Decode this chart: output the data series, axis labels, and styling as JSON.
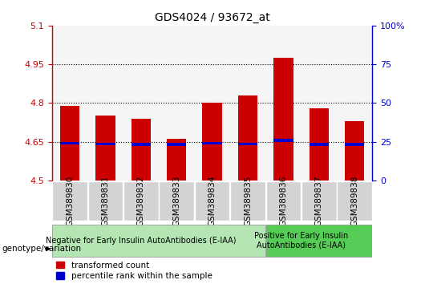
{
  "title": "GDS4024 / 93672_at",
  "samples": [
    "GSM389830",
    "GSM389831",
    "GSM389832",
    "GSM389833",
    "GSM389834",
    "GSM389835",
    "GSM389836",
    "GSM389837",
    "GSM389838"
  ],
  "red_values": [
    4.79,
    4.75,
    4.74,
    4.66,
    4.8,
    4.83,
    4.975,
    4.78,
    4.73
  ],
  "blue_values": [
    4.638,
    4.635,
    4.632,
    4.634,
    4.638,
    4.635,
    4.648,
    4.632,
    4.632
  ],
  "blue_heights": [
    0.012,
    0.012,
    0.012,
    0.012,
    0.012,
    0.012,
    0.012,
    0.012,
    0.012
  ],
  "y_min": 4.5,
  "y_max": 5.1,
  "y_ticks_left": [
    4.5,
    4.65,
    4.8,
    4.95,
    5.1
  ],
  "y_ticks_right": [
    0,
    25,
    50,
    75,
    100
  ],
  "dotted_lines": [
    4.65,
    4.8,
    4.95
  ],
  "group1_label": "Negative for Early Insulin AutoAntibodies (E-IAA)",
  "group1_count": 6,
  "group2_label": "Positive for Early Insulin\nAutoAntibodies (E-IAA)",
  "group2_count": 3,
  "genotype_label": "genotype/variation",
  "red_color": "#cc0000",
  "blue_color": "#0000cc",
  "bar_width": 0.55,
  "bg_plot": "#f5f5f5",
  "bg_sample": "#d3d3d3",
  "bg_group1": "#b3e6b3",
  "bg_group2": "#55cc55",
  "legend_red": "transformed count",
  "legend_blue": "percentile rank within the sample"
}
